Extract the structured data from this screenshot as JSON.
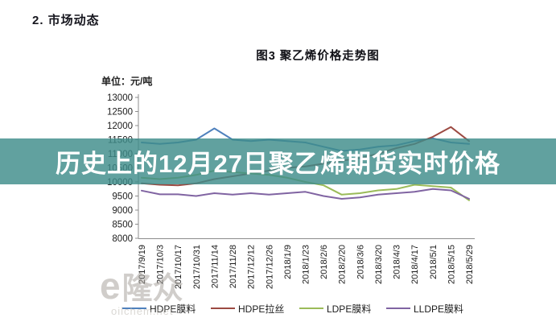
{
  "page": {
    "section_heading": "2.  市场动态",
    "chart_title": "图3 聚乙烯价格走势图",
    "unit_label": "单位：元/吨",
    "overlay_headline": "历史上的12月27日聚乙烯期货实时价格",
    "watermark": {
      "logo_e": "e",
      "logo_cjk": "隆众",
      "site": "oilchem.net"
    }
  },
  "chart_data": {
    "type": "line",
    "title": "图3 聚乙烯价格走势图",
    "xlabel": "",
    "ylabel": "单位：元/吨",
    "ylim": [
      8000,
      13000
    ],
    "yticks": [
      13000,
      12500,
      12000,
      11500,
      11000,
      10500,
      10000,
      9500,
      9000,
      8500,
      8000
    ],
    "grid": false,
    "legend_position": "bottom",
    "categories": [
      "2017/9/19",
      "2017/10/3",
      "2017/10/17",
      "2017/10/31",
      "2017/11/14",
      "2017/11/28",
      "2017/12/12",
      "2017/12/26",
      "2018/1/9",
      "2018/1/23",
      "2018/2/6",
      "2018/2/20",
      "2018/3/6",
      "2018/3/20",
      "2018/4/3",
      "2018/4/17",
      "2018/5/1",
      "2018/5/15",
      "2018/5/29"
    ],
    "series": [
      {
        "name": "HDPE膜料",
        "color": "#4f81bd",
        "values": [
          11400,
          11350,
          11400,
          11500,
          11900,
          11500,
          11450,
          11500,
          11450,
          11400,
          11250,
          11100,
          11150,
          11250,
          11300,
          11450,
          11550,
          11400,
          11350
        ]
      },
      {
        "name": "HDPE拉丝",
        "color": "#9c4a42",
        "values": [
          9950,
          9900,
          9880,
          9950,
          10100,
          10200,
          10300,
          10400,
          10500,
          10550,
          10650,
          10750,
          10850,
          11000,
          11200,
          11350,
          11600,
          11950,
          11450
        ]
      },
      {
        "name": "LDPE膜料",
        "color": "#9bbb59",
        "values": [
          10150,
          10100,
          10150,
          10250,
          10400,
          10350,
          10300,
          10250,
          10150,
          10000,
          9880,
          9550,
          9600,
          9700,
          9750,
          9900,
          9850,
          9800,
          9350
        ]
      },
      {
        "name": "LLDPE膜料",
        "color": "#8064a2",
        "values": [
          9690,
          9560,
          9560,
          9500,
          9600,
          9550,
          9600,
          9550,
          9600,
          9650,
          9500,
          9400,
          9450,
          9550,
          9600,
          9650,
          9750,
          9700,
          9400
        ]
      }
    ],
    "overlay_band": {
      "text": "历史上的12月27日聚乙烯期货实时价格",
      "color": "#3e8c8a",
      "covers_value_range": [
        9880,
        11530
      ]
    }
  }
}
